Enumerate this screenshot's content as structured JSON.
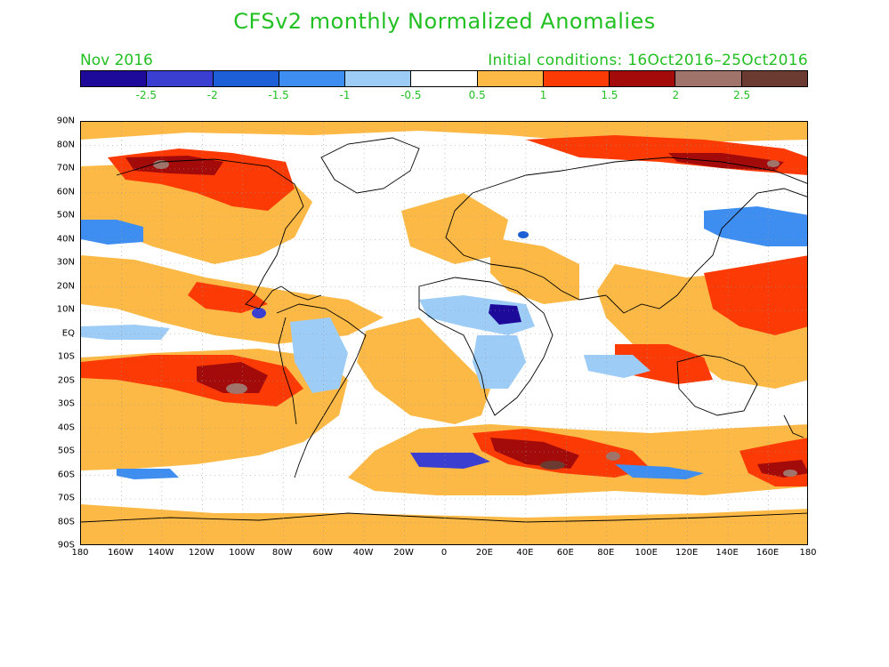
{
  "title": "CFSv2 monthly Normalized Anomalies",
  "subtitle_left": "Nov 2016",
  "subtitle_right": "Initial conditions: 16Oct2016–25Oct2016",
  "colorbar": {
    "colors": [
      "#1d0a9a",
      "#3b3fd1",
      "#1d5fd6",
      "#3d8ef0",
      "#9dcdf7",
      "#ffffff",
      "#fdb945",
      "#fc3a05",
      "#a30a0a",
      "#a0746a",
      "#6b3a30"
    ],
    "labels": [
      "-2.5",
      "-2",
      "-1.5",
      "-1",
      "-0.5",
      "0.5",
      "1",
      "1.5",
      "2",
      "2.5"
    ]
  },
  "map": {
    "lat_labels": [
      "90N",
      "80N",
      "70N",
      "60N",
      "50N",
      "40N",
      "30N",
      "20N",
      "10N",
      "EQ",
      "10S",
      "20S",
      "30S",
      "40S",
      "50S",
      "60S",
      "70S",
      "80S",
      "90S"
    ],
    "lon_labels": [
      "180",
      "160W",
      "140W",
      "120W",
      "100W",
      "80W",
      "60W",
      "40W",
      "20W",
      "0",
      "20E",
      "40E",
      "60E",
      "80E",
      "100E",
      "120E",
      "140E",
      "160E",
      "180"
    ]
  }
}
